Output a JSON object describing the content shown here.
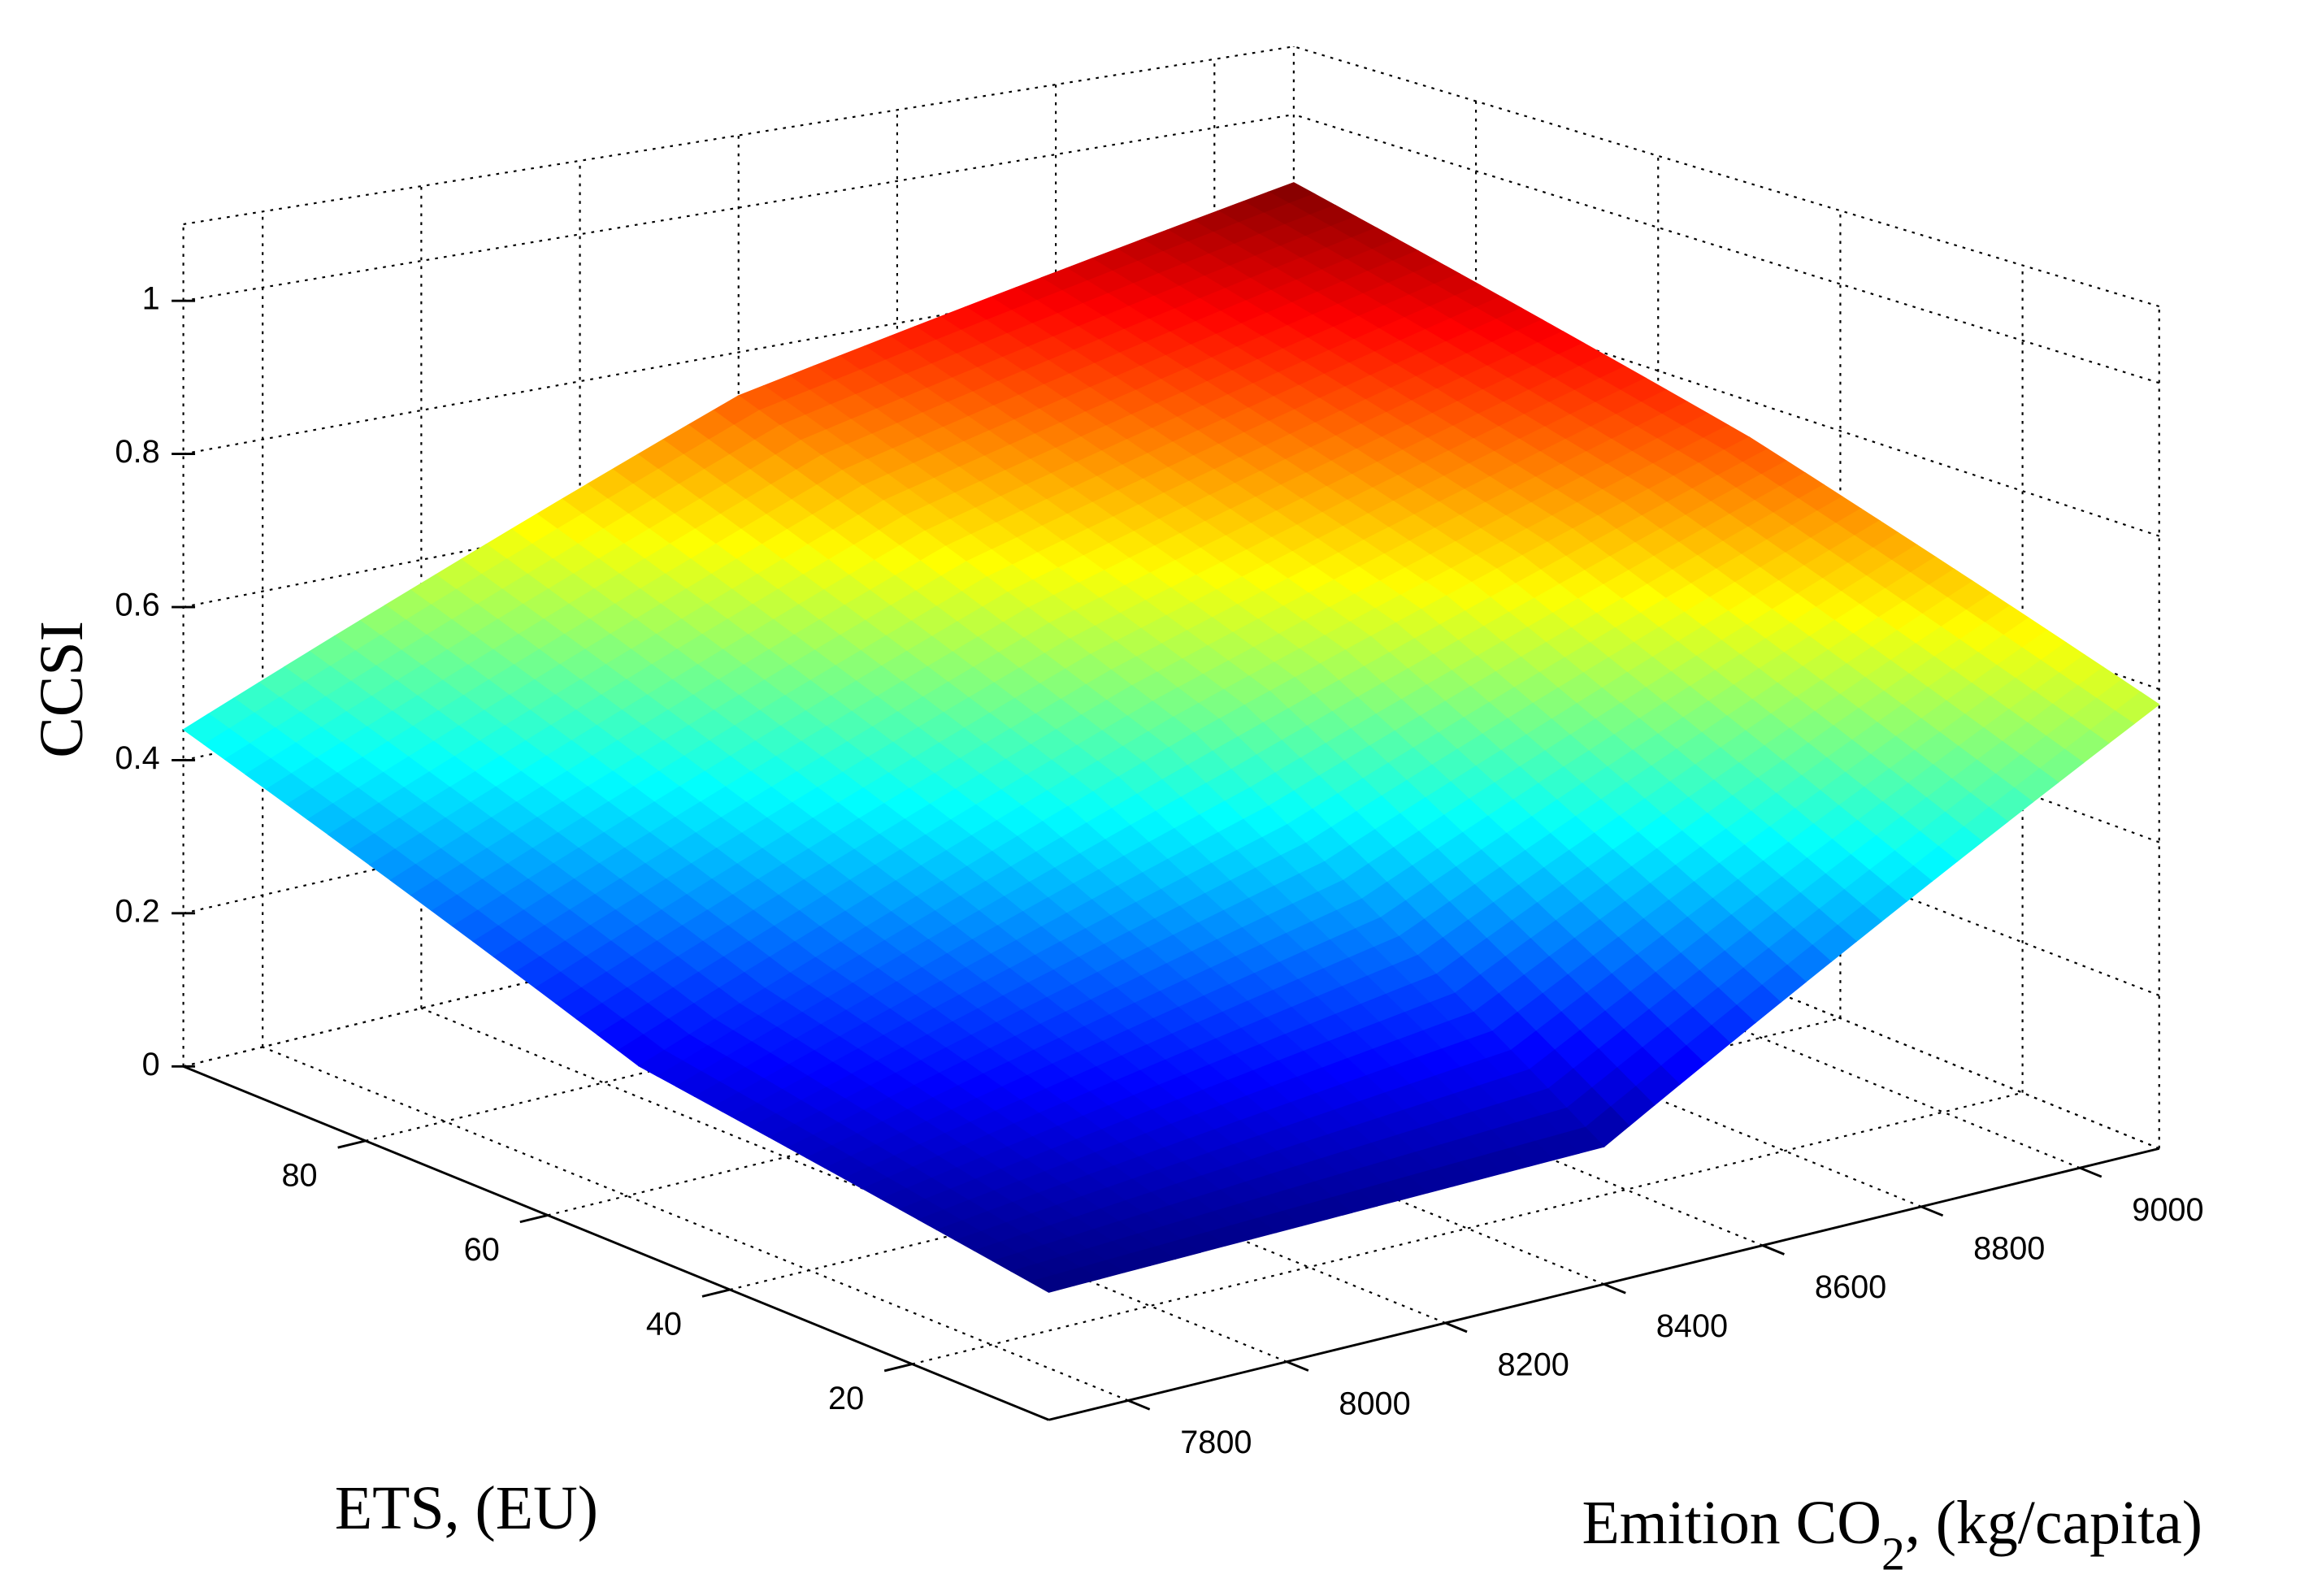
{
  "chart_data": {
    "type": "surface",
    "colormap": "jet",
    "xlabel": "ETS, (EU)",
    "ylabel_parts": [
      "Emition CO",
      "2",
      ", (kg/capita)"
    ],
    "zlabel": "CCSI",
    "x": [
      5,
      50,
      100
    ],
    "y": [
      7700,
      8400,
      9100
    ],
    "z": [
      [
        0.15,
        0.17,
        0.58
      ],
      [
        0.23,
        0.5,
        0.75
      ],
      [
        0.44,
        0.74,
        0.9
      ]
    ],
    "xlim": [
      5,
      100
    ],
    "ylim": [
      7700,
      9100
    ],
    "zlim": [
      0,
      1.1
    ],
    "xticks": [
      20,
      40,
      60,
      80
    ],
    "yticks": [
      7800,
      8000,
      8200,
      8400,
      8600,
      8800,
      9000
    ],
    "zticks": [
      0,
      0.2,
      0.4,
      0.6,
      0.8,
      1
    ],
    "grid": true
  }
}
